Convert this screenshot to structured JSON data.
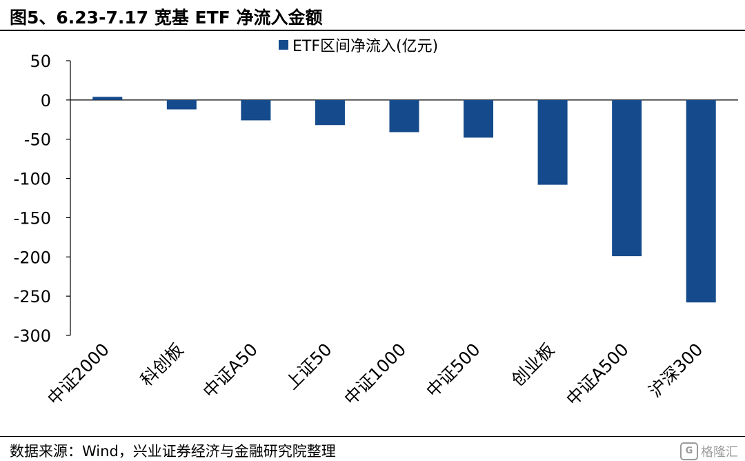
{
  "figure": {
    "title": "图5、6.23-7.17 宽基 ETF 净流入金额",
    "source": "数据来源：Wind，兴业证券经济与金融研究院整理",
    "watermark": "格隆汇",
    "watermark_logo": "G"
  },
  "colors": {
    "bar": "#154b8c",
    "axis": "#000000"
  },
  "chart_data": {
    "type": "bar",
    "title": "",
    "xlabel": "",
    "ylabel": "",
    "categories": [
      "中证2000",
      "科创板",
      "中证A50",
      "上证50",
      "中证1000",
      "中证500",
      "创业板",
      "中证A500",
      "沪深300"
    ],
    "series": [
      {
        "name": "ETF区间净流入(亿元)",
        "values": [
          4,
          -12,
          -26,
          -32,
          -41,
          -48,
          -108,
          -199,
          -258
        ]
      }
    ],
    "ylim": [
      -300,
      50
    ],
    "yticks": [
      "50",
      "0",
      "-50",
      "-100",
      "-150",
      "-200",
      "-250",
      "-300"
    ],
    "grid": false,
    "legend_position": "top-center"
  }
}
